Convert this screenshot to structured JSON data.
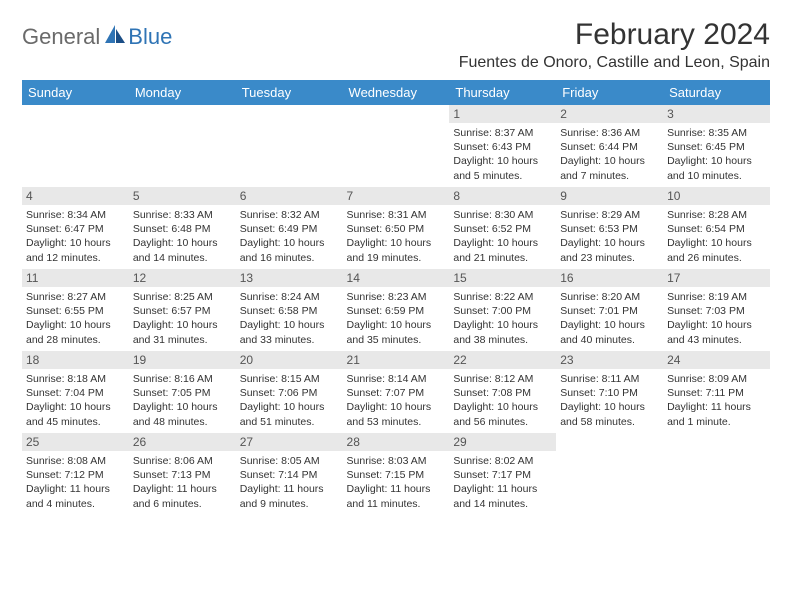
{
  "brand": {
    "part1": "General",
    "part2": "Blue"
  },
  "title": "February 2024",
  "location": "Fuentes de Onoro, Castille and Leon, Spain",
  "colors": {
    "header_bg": "#3a8ac9",
    "header_fg": "#ffffff",
    "daynum_bg": "#e8e8e8",
    "brand_gray": "#6a6a6a",
    "brand_blue": "#2f74b5"
  },
  "weekdays": [
    "Sunday",
    "Monday",
    "Tuesday",
    "Wednesday",
    "Thursday",
    "Friday",
    "Saturday"
  ],
  "first_weekday_index": 4,
  "days": [
    {
      "n": 1,
      "sunrise": "8:37 AM",
      "sunset": "6:43 PM",
      "daylight": "10 hours and 5 minutes."
    },
    {
      "n": 2,
      "sunrise": "8:36 AM",
      "sunset": "6:44 PM",
      "daylight": "10 hours and 7 minutes."
    },
    {
      "n": 3,
      "sunrise": "8:35 AM",
      "sunset": "6:45 PM",
      "daylight": "10 hours and 10 minutes."
    },
    {
      "n": 4,
      "sunrise": "8:34 AM",
      "sunset": "6:47 PM",
      "daylight": "10 hours and 12 minutes."
    },
    {
      "n": 5,
      "sunrise": "8:33 AM",
      "sunset": "6:48 PM",
      "daylight": "10 hours and 14 minutes."
    },
    {
      "n": 6,
      "sunrise": "8:32 AM",
      "sunset": "6:49 PM",
      "daylight": "10 hours and 16 minutes."
    },
    {
      "n": 7,
      "sunrise": "8:31 AM",
      "sunset": "6:50 PM",
      "daylight": "10 hours and 19 minutes."
    },
    {
      "n": 8,
      "sunrise": "8:30 AM",
      "sunset": "6:52 PM",
      "daylight": "10 hours and 21 minutes."
    },
    {
      "n": 9,
      "sunrise": "8:29 AM",
      "sunset": "6:53 PM",
      "daylight": "10 hours and 23 minutes."
    },
    {
      "n": 10,
      "sunrise": "8:28 AM",
      "sunset": "6:54 PM",
      "daylight": "10 hours and 26 minutes."
    },
    {
      "n": 11,
      "sunrise": "8:27 AM",
      "sunset": "6:55 PM",
      "daylight": "10 hours and 28 minutes."
    },
    {
      "n": 12,
      "sunrise": "8:25 AM",
      "sunset": "6:57 PM",
      "daylight": "10 hours and 31 minutes."
    },
    {
      "n": 13,
      "sunrise": "8:24 AM",
      "sunset": "6:58 PM",
      "daylight": "10 hours and 33 minutes."
    },
    {
      "n": 14,
      "sunrise": "8:23 AM",
      "sunset": "6:59 PM",
      "daylight": "10 hours and 35 minutes."
    },
    {
      "n": 15,
      "sunrise": "8:22 AM",
      "sunset": "7:00 PM",
      "daylight": "10 hours and 38 minutes."
    },
    {
      "n": 16,
      "sunrise": "8:20 AM",
      "sunset": "7:01 PM",
      "daylight": "10 hours and 40 minutes."
    },
    {
      "n": 17,
      "sunrise": "8:19 AM",
      "sunset": "7:03 PM",
      "daylight": "10 hours and 43 minutes."
    },
    {
      "n": 18,
      "sunrise": "8:18 AM",
      "sunset": "7:04 PM",
      "daylight": "10 hours and 45 minutes."
    },
    {
      "n": 19,
      "sunrise": "8:16 AM",
      "sunset": "7:05 PM",
      "daylight": "10 hours and 48 minutes."
    },
    {
      "n": 20,
      "sunrise": "8:15 AM",
      "sunset": "7:06 PM",
      "daylight": "10 hours and 51 minutes."
    },
    {
      "n": 21,
      "sunrise": "8:14 AM",
      "sunset": "7:07 PM",
      "daylight": "10 hours and 53 minutes."
    },
    {
      "n": 22,
      "sunrise": "8:12 AM",
      "sunset": "7:08 PM",
      "daylight": "10 hours and 56 minutes."
    },
    {
      "n": 23,
      "sunrise": "8:11 AM",
      "sunset": "7:10 PM",
      "daylight": "10 hours and 58 minutes."
    },
    {
      "n": 24,
      "sunrise": "8:09 AM",
      "sunset": "7:11 PM",
      "daylight": "11 hours and 1 minute."
    },
    {
      "n": 25,
      "sunrise": "8:08 AM",
      "sunset": "7:12 PM",
      "daylight": "11 hours and 4 minutes."
    },
    {
      "n": 26,
      "sunrise": "8:06 AM",
      "sunset": "7:13 PM",
      "daylight": "11 hours and 6 minutes."
    },
    {
      "n": 27,
      "sunrise": "8:05 AM",
      "sunset": "7:14 PM",
      "daylight": "11 hours and 9 minutes."
    },
    {
      "n": 28,
      "sunrise": "8:03 AM",
      "sunset": "7:15 PM",
      "daylight": "11 hours and 11 minutes."
    },
    {
      "n": 29,
      "sunrise": "8:02 AM",
      "sunset": "7:17 PM",
      "daylight": "11 hours and 14 minutes."
    }
  ],
  "labels": {
    "sunrise": "Sunrise:",
    "sunset": "Sunset:",
    "daylight": "Daylight:"
  }
}
